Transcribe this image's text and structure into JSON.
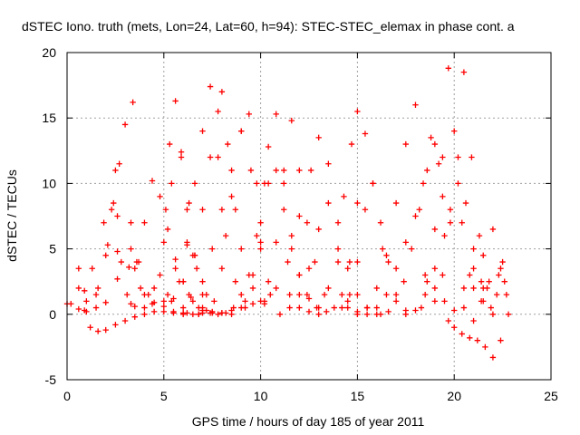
{
  "chart_data": {
    "type": "scatter",
    "title": "dSTEC Iono. truth (mets, Lon=24, Lat=60, h=94): STEC-STEC_elemax in phase cont. a",
    "xlabel": "GPS time / hours of day 185 of year 2011",
    "ylabel": "dSTEC  / TECUs",
    "xlim": [
      0,
      25
    ],
    "ylim": [
      -5,
      20
    ],
    "x_ticks": [
      0,
      5,
      10,
      15,
      20,
      25
    ],
    "y_ticks": [
      -5,
      0,
      5,
      10,
      15,
      20
    ],
    "x_tick_labels": [
      "0",
      "5",
      "10",
      "15",
      "20",
      "25"
    ],
    "y_tick_labels": [
      "-5",
      "0",
      "5",
      "10",
      "15",
      "20"
    ],
    "grid": true,
    "legend": "none",
    "marker": "plus",
    "color": "#ff0000",
    "series": [
      {
        "x": [
          0.0,
          0.6,
          1.0,
          1.5,
          2.0,
          2.6,
          3.3,
          3.5,
          4.2,
          5.0,
          5.5,
          6.0,
          6.8
        ],
        "y": [
          0.8,
          3.5,
          1.0,
          0.5,
          0.9,
          2.7,
          5.0,
          3.5,
          1.5,
          0.6,
          0.2,
          0.1,
          0.0
        ]
      },
      {
        "x": [
          0.2,
          0.6,
          0.9,
          1.3,
          1.9,
          2.5,
          3.0,
          3.4
        ],
        "y": [
          0.8,
          2.0,
          1.8,
          3.5,
          7.0,
          11.0,
          14.5,
          16.2
        ]
      },
      {
        "x": [
          0.9,
          1.6,
          2.1,
          2.6,
          3.2,
          3.8,
          4.5,
          5.2,
          5.6,
          6.2,
          6.7
        ],
        "y": [
          0.3,
          2.0,
          5.3,
          4.8,
          3.6,
          2.0,
          0.9,
          1.5,
          3.5,
          5.3,
          3.5
        ]
      },
      {
        "x": [
          0.6,
          1.0,
          1.5,
          2.0,
          2.3,
          2.7
        ],
        "y": [
          0.4,
          0.2,
          1.5,
          4.5,
          8.0,
          11.5
        ]
      },
      {
        "x": [
          1.2,
          1.6,
          2.0,
          2.5,
          3.0,
          3.5,
          4.0,
          4.5,
          5.0,
          5.5,
          6.2,
          6.8
        ],
        "y": [
          -1.0,
          -1.3,
          -1.2,
          -0.8,
          -0.5,
          -0.2,
          0.0,
          0.2,
          0.2,
          0.1,
          0.1,
          0.0
        ]
      },
      {
        "x": [
          2.4,
          2.6,
          2.8,
          3.1,
          3.5,
          4.0,
          4.5,
          5.0,
          5.4,
          5.9,
          6.3,
          6.6,
          7.2
        ],
        "y": [
          8.5,
          7.5,
          4.0,
          1.5,
          0.6,
          0.5,
          2.0,
          5.5,
          10.0,
          12.4,
          8.5,
          4.5,
          1.5
        ]
      },
      {
        "x": [
          3.3,
          3.6,
          4.0,
          4.4,
          4.8,
          5.1,
          5.3,
          5.6,
          5.9,
          6.2,
          6.6,
          7.0
        ],
        "y": [
          7.0,
          4.0,
          1.5,
          0.8,
          3.0,
          8.0,
          13.0,
          16.3,
          12.0,
          8.0,
          4.5,
          1.5
        ]
      },
      {
        "x": [
          3.3,
          3.7,
          4.0,
          4.4,
          4.8,
          5.2,
          5.6,
          6.0,
          6.4,
          7.0,
          7.5,
          8.0,
          8.5
        ],
        "y": [
          0.8,
          4.0,
          7.0,
          10.2,
          9.0,
          6.5,
          4.2,
          2.5,
          1.3,
          0.5,
          0.2,
          0.1,
          0.0
        ]
      },
      {
        "x": [
          5.0,
          5.5,
          6.0,
          6.5,
          7.0,
          7.4,
          7.8,
          8.0,
          8.3,
          8.7,
          9.0
        ],
        "y": [
          1.0,
          1.2,
          2.5,
          4.5,
          8.0,
          12.0,
          15.5,
          17.0,
          13.0,
          8.0,
          5.0
        ]
      },
      {
        "x": [
          5.4,
          5.8,
          6.2,
          6.6,
          7.0,
          7.4,
          7.8,
          8.2,
          8.7,
          9.2
        ],
        "y": [
          1.0,
          2.5,
          5.5,
          10.0,
          14.0,
          17.4,
          12.0,
          6.0,
          2.5,
          1.0
        ]
      },
      {
        "x": [
          6.0,
          6.5,
          7.0,
          7.5,
          8.0,
          8.5,
          9.0,
          9.5,
          10.0,
          10.5
        ],
        "y": [
          0.5,
          1.0,
          2.5,
          5.0,
          8.0,
          11.0,
          14.0,
          11.0,
          5.0,
          1.5
        ]
      },
      {
        "x": [
          6.3,
          6.8,
          7.2,
          7.6,
          8.0,
          8.5,
          9.0,
          9.4,
          9.8
        ],
        "y": [
          1.5,
          0.5,
          0.3,
          1.0,
          3.5,
          9.0,
          14.0,
          15.3,
          10.0
        ]
      },
      {
        "x": [
          7.0,
          7.4,
          7.8,
          8.2,
          8.6,
          9.0,
          9.4,
          9.8,
          10.2
        ],
        "y": [
          0.3,
          0.1,
          0.0,
          0.1,
          0.5,
          1.5,
          3.0,
          6.0,
          10.0
        ]
      },
      {
        "x": [
          6.0,
          6.5,
          7.0,
          7.5,
          8.0,
          8.5,
          9.0,
          9.6,
          10.2
        ],
        "y": [
          0.0,
          0.0,
          0.1,
          0.1,
          0.1,
          0.3,
          0.5,
          0.8,
          1.0
        ]
      },
      {
        "x": [
          9.2,
          9.6,
          10.0,
          10.4,
          10.8,
          11.2,
          11.6,
          12.0,
          12.5
        ],
        "y": [
          0.5,
          2.0,
          5.5,
          10.0,
          15.3,
          11.0,
          6.0,
          3.0,
          1.2
        ]
      },
      {
        "x": [
          9.6,
          10.0,
          10.4,
          10.8,
          11.2,
          11.6,
          12.0,
          12.4,
          12.9
        ],
        "y": [
          3.0,
          7.0,
          12.8,
          11.0,
          8.0,
          5.0,
          3.0,
          1.5,
          0.5
        ]
      },
      {
        "x": [
          10.0,
          10.4,
          10.8,
          11.2,
          11.6,
          12.0,
          12.4,
          12.8,
          13.3
        ],
        "y": [
          1.0,
          2.5,
          5.5,
          10.0,
          14.8,
          11.0,
          7.0,
          4.0,
          1.5
        ]
      },
      {
        "x": [
          10.2,
          10.8,
          11.4,
          12.0,
          12.6,
          13.0,
          13.5,
          14.0,
          14.5
        ],
        "y": [
          0.8,
          2.0,
          4.0,
          7.5,
          11.0,
          13.5,
          8.5,
          4.0,
          1.0
        ]
      },
      {
        "x": [
          11.5,
          12.0,
          12.5,
          13.0,
          13.5,
          14.0,
          14.3,
          14.7,
          15.0
        ],
        "y": [
          1.5,
          0.5,
          0.2,
          0.5,
          2.0,
          5.0,
          9.0,
          13.0,
          15.5
        ]
      },
      {
        "x": [
          11.0,
          11.5,
          12.0,
          12.5,
          13.0,
          13.5,
          14.0,
          14.5,
          15.0,
          15.5,
          16.0
        ],
        "y": [
          0.0,
          0.5,
          1.5,
          3.5,
          6.5,
          11.5,
          7.0,
          3.5,
          1.5,
          0.5,
          0.0
        ]
      },
      {
        "x": [
          13.0,
          13.4,
          13.8,
          14.2,
          14.6,
          15.0,
          15.4,
          15.8,
          16.3
        ],
        "y": [
          0.0,
          0.2,
          0.5,
          1.5,
          4.0,
          8.5,
          13.8,
          10.0,
          5.0
        ]
      },
      {
        "x": [
          14.5,
          15.0,
          15.5,
          16.0,
          16.5,
          17.0,
          17.5,
          18.0
        ],
        "y": [
          0.5,
          0.2,
          0.5,
          2.0,
          4.5,
          8.5,
          13.0,
          16.0
        ]
      },
      {
        "x": [
          14.2,
          14.6,
          15.0,
          15.4,
          15.8,
          16.2,
          16.6,
          17.0,
          17.5
        ],
        "y": [
          0.5,
          1.5,
          4.0,
          8.0,
          10.0,
          7.0,
          4.0,
          1.5,
          0.3
        ]
      },
      {
        "x": [
          15.0,
          15.5,
          16.0,
          16.5,
          17.0,
          17.5,
          18.0,
          18.4,
          18.8,
          19.2
        ],
        "y": [
          0.0,
          0.0,
          0.5,
          1.5,
          3.5,
          5.5,
          7.5,
          10.0,
          13.5,
          11.5
        ]
      },
      {
        "x": [
          16.2,
          16.6,
          17.0,
          17.4,
          17.8,
          18.2,
          18.6,
          19.0,
          19.4
        ],
        "y": [
          0.0,
          0.2,
          1.0,
          2.5,
          5.0,
          8.0,
          11.0,
          13.0,
          9.0
        ]
      },
      {
        "x": [
          17.5,
          18.0,
          18.5,
          19.0,
          19.5,
          19.8,
          20.2,
          20.6,
          21.0,
          21.4
        ],
        "y": [
          0.0,
          0.3,
          1.5,
          3.5,
          6.0,
          8.0,
          10.0,
          8.5,
          5.0,
          2.5
        ]
      },
      {
        "x": [
          18.3,
          18.6,
          19.0,
          19.4,
          19.7,
          20.0,
          20.4,
          20.8
        ],
        "y": [
          0.5,
          2.5,
          6.5,
          12.0,
          18.8,
          14.0,
          7.0,
          3.0
        ]
      },
      {
        "x": [
          19.0,
          19.4,
          19.8,
          20.2,
          20.5,
          20.9,
          21.3,
          21.7
        ],
        "y": [
          1.0,
          3.0,
          7.0,
          12.0,
          18.5,
          12.0,
          6.0,
          2.0
        ]
      },
      {
        "x": [
          18.5,
          19.0,
          19.5,
          20.0,
          20.5,
          21.0,
          21.5,
          22.0,
          22.5
        ],
        "y": [
          3.0,
          2.0,
          1.0,
          0.3,
          0.5,
          2.0,
          4.5,
          6.5,
          4.0
        ]
      },
      {
        "x": [
          19.7,
          20.0,
          20.4,
          20.8,
          21.2,
          21.6,
          22.0,
          22.4
        ],
        "y": [
          -0.5,
          -1.0,
          -1.5,
          -1.8,
          -2.0,
          -2.5,
          -3.3,
          -2.0
        ]
      },
      {
        "x": [
          20.5,
          21.0,
          21.5,
          22.0,
          22.4,
          22.8
        ],
        "y": [
          2.0,
          3.5,
          1.0,
          0.0,
          3.5,
          0.0
        ]
      },
      {
        "x": [
          21.0,
          21.4,
          21.8,
          22.2,
          22.6
        ],
        "y": [
          -0.5,
          1.0,
          2.5,
          1.5,
          2.5
        ]
      },
      {
        "x": [
          21.5,
          21.9,
          22.3,
          22.7
        ],
        "y": [
          2.0,
          0.5,
          3.0,
          1.5
        ]
      }
    ]
  }
}
